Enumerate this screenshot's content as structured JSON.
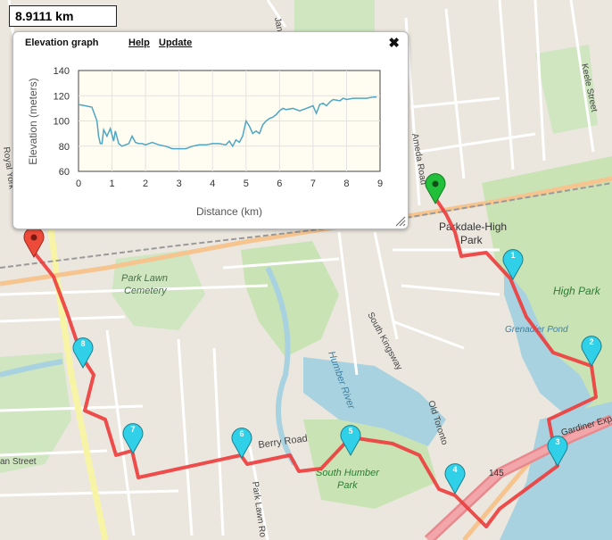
{
  "distance": {
    "value": "8.9111 km"
  },
  "panel": {
    "title": "Elevation graph",
    "help_label": "Help",
    "update_label": "Update",
    "close_glyph": "✖"
  },
  "chart_data": {
    "type": "line",
    "xlabel": "Distance (km)",
    "ylabel": "Elevation (meters)",
    "xlim": [
      0,
      9
    ],
    "ylim": [
      60,
      140
    ],
    "xticks": [
      0,
      1,
      2,
      3,
      4,
      5,
      6,
      7,
      8,
      9
    ],
    "yticks": [
      60,
      80,
      100,
      120,
      140
    ],
    "grid": true,
    "series": [
      {
        "color": "#4ea6c4",
        "x": [
          0,
          0.2,
          0.4,
          0.55,
          0.6,
          0.65,
          0.7,
          0.75,
          0.85,
          0.95,
          1.05,
          1.1,
          1.2,
          1.3,
          1.4,
          1.5,
          1.6,
          1.7,
          1.8,
          1.9,
          2.0,
          2.2,
          2.4,
          2.6,
          2.8,
          3.0,
          3.2,
          3.4,
          3.6,
          3.8,
          4.0,
          4.2,
          4.4,
          4.5,
          4.6,
          4.7,
          4.8,
          4.9,
          5.0,
          5.1,
          5.2,
          5.3,
          5.4,
          5.5,
          5.6,
          5.7,
          5.8,
          5.9,
          6.0,
          6.1,
          6.2,
          6.4,
          6.6,
          6.8,
          7.0,
          7.1,
          7.2,
          7.3,
          7.4,
          7.5,
          7.6,
          7.8,
          7.9,
          8.0,
          8.2,
          8.4,
          8.6,
          8.8,
          8.9
        ],
        "y": [
          113,
          112,
          111,
          100,
          88,
          82,
          82,
          93,
          88,
          94,
          84,
          92,
          82,
          80,
          81,
          82,
          88,
          83,
          82,
          82,
          81,
          83,
          81,
          80,
          78,
          78,
          78,
          80,
          81,
          81,
          82,
          82,
          81,
          84,
          80,
          85,
          83,
          88,
          100,
          96,
          90,
          92,
          90,
          97,
          100,
          102,
          103,
          105,
          108,
          110,
          109,
          110,
          108,
          110,
          112,
          106,
          113,
          114,
          112,
          115,
          117,
          116,
          118,
          117,
          118,
          118,
          118,
          119,
          119
        ]
      }
    ]
  },
  "map": {
    "labels": {
      "parkdale": "Parkdale-High",
      "park_word": "Park",
      "high_park": "High Park",
      "park_lawn_cemetery_1": "Park Lawn",
      "park_lawn_cemetery_2": "Cemetery",
      "south_kingsway": "South Kingsway",
      "humber_river": "Humber River",
      "south_humber_park_1": "South Humber",
      "south_humber_park_2": "Park",
      "berry_road": "Berry Road",
      "park_lawn_road": "Park Lawn Ro",
      "gardiner": "Gardiner Express",
      "route_145": "145",
      "keele": "Keele Street",
      "jane": "Jane",
      "ameda": "Ameda Road",
      "royal_york": "Royal York",
      "old_toronto": "Old Toronto",
      "grenadier_pond": "Grenadier Pond",
      "street_left": "an Street"
    },
    "markers": [
      {
        "label": "1"
      },
      {
        "label": "2"
      },
      {
        "label": "3"
      },
      {
        "label": "4"
      },
      {
        "label": "5"
      },
      {
        "label": "6"
      },
      {
        "label": "7"
      },
      {
        "label": "8"
      }
    ],
    "colors": {
      "route": "#ee3b3b",
      "marker": "#2fd0e8",
      "start": "#22c03a",
      "end": "#ee4a3a"
    }
  }
}
